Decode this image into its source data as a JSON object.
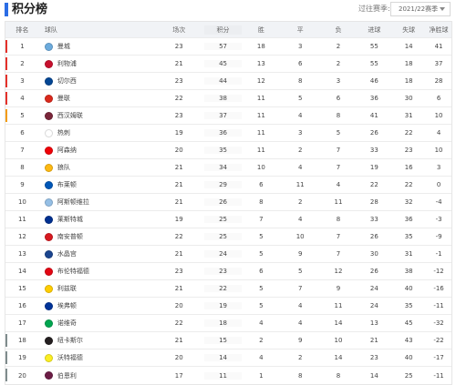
{
  "header": {
    "title": "积分榜",
    "season_label": "过往赛季:",
    "season_value": "2021/22赛季"
  },
  "columns": {
    "rank": "排名",
    "team": "球队",
    "played": "场次",
    "points": "积分",
    "won": "胜",
    "drawn": "平",
    "lost": "负",
    "goals_for": "进球",
    "goals_against": "失球",
    "goal_diff": "净胜球"
  },
  "colors": {
    "accent": "#2b6de5",
    "champions_league": "#e4312b",
    "europa_league": "#f39c12",
    "conference_league": "#27ae60",
    "relegation": "#7f8c8d"
  },
  "rows": [
    {
      "rank": "1",
      "team": "曼城",
      "played": "23",
      "points": "57",
      "won": "18",
      "drawn": "3",
      "lost": "2",
      "gf": "55",
      "ga": "14",
      "gd": "41",
      "zone": "champions_league",
      "crest": "#6cabdd"
    },
    {
      "rank": "2",
      "team": "利物浦",
      "played": "21",
      "points": "45",
      "won": "13",
      "drawn": "6",
      "lost": "2",
      "gf": "55",
      "ga": "18",
      "gd": "37",
      "zone": "champions_league",
      "crest": "#c8102e"
    },
    {
      "rank": "3",
      "team": "切尔西",
      "played": "23",
      "points": "44",
      "won": "12",
      "drawn": "8",
      "lost": "3",
      "gf": "46",
      "ga": "18",
      "gd": "28",
      "zone": "champions_league",
      "crest": "#034694"
    },
    {
      "rank": "4",
      "team": "曼联",
      "played": "22",
      "points": "38",
      "won": "11",
      "drawn": "5",
      "lost": "6",
      "gf": "36",
      "ga": "30",
      "gd": "6",
      "zone": "champions_league",
      "crest": "#da291c"
    },
    {
      "rank": "5",
      "team": "西汉姆联",
      "played": "23",
      "points": "37",
      "won": "11",
      "drawn": "4",
      "lost": "8",
      "gf": "41",
      "ga": "31",
      "gd": "10",
      "zone": "europa_league",
      "crest": "#7a263a"
    },
    {
      "rank": "6",
      "team": "热刺",
      "played": "19",
      "points": "36",
      "won": "11",
      "drawn": "3",
      "lost": "5",
      "gf": "26",
      "ga": "22",
      "gd": "4",
      "zone": "",
      "crest": "#ffffff"
    },
    {
      "rank": "7",
      "team": "阿森纳",
      "played": "20",
      "points": "35",
      "won": "11",
      "drawn": "2",
      "lost": "7",
      "gf": "33",
      "ga": "23",
      "gd": "10",
      "zone": "",
      "crest": "#ef0107"
    },
    {
      "rank": "8",
      "team": "狼队",
      "played": "21",
      "points": "34",
      "won": "10",
      "drawn": "4",
      "lost": "7",
      "gf": "19",
      "ga": "16",
      "gd": "3",
      "zone": "",
      "crest": "#fdb913"
    },
    {
      "rank": "9",
      "team": "布莱顿",
      "played": "21",
      "points": "29",
      "won": "6",
      "drawn": "11",
      "lost": "4",
      "gf": "22",
      "ga": "22",
      "gd": "0",
      "zone": "",
      "crest": "#0057b8"
    },
    {
      "rank": "10",
      "team": "阿斯顿维拉",
      "played": "21",
      "points": "26",
      "won": "8",
      "drawn": "2",
      "lost": "11",
      "gf": "28",
      "ga": "32",
      "gd": "-4",
      "zone": "",
      "crest": "#95bfe5"
    },
    {
      "rank": "11",
      "team": "莱斯特城",
      "played": "19",
      "points": "25",
      "won": "7",
      "drawn": "4",
      "lost": "8",
      "gf": "33",
      "ga": "36",
      "gd": "-3",
      "zone": "",
      "crest": "#003090"
    },
    {
      "rank": "12",
      "team": "南安普顿",
      "played": "22",
      "points": "25",
      "won": "5",
      "drawn": "10",
      "lost": "7",
      "gf": "26",
      "ga": "35",
      "gd": "-9",
      "zone": "",
      "crest": "#d71920"
    },
    {
      "rank": "13",
      "team": "水晶宫",
      "played": "21",
      "points": "24",
      "won": "5",
      "drawn": "9",
      "lost": "7",
      "gf": "30",
      "ga": "31",
      "gd": "-1",
      "zone": "",
      "crest": "#1b458f"
    },
    {
      "rank": "14",
      "team": "布伦特福德",
      "played": "23",
      "points": "23",
      "won": "6",
      "drawn": "5",
      "lost": "12",
      "gf": "26",
      "ga": "38",
      "gd": "-12",
      "zone": "",
      "crest": "#e30613"
    },
    {
      "rank": "15",
      "team": "利兹联",
      "played": "21",
      "points": "22",
      "won": "5",
      "drawn": "7",
      "lost": "9",
      "gf": "24",
      "ga": "40",
      "gd": "-16",
      "zone": "",
      "crest": "#ffcd00"
    },
    {
      "rank": "16",
      "team": "埃弗顿",
      "played": "20",
      "points": "19",
      "won": "5",
      "drawn": "4",
      "lost": "11",
      "gf": "24",
      "ga": "35",
      "gd": "-11",
      "zone": "",
      "crest": "#003399"
    },
    {
      "rank": "17",
      "team": "诺维奇",
      "played": "22",
      "points": "18",
      "won": "4",
      "drawn": "4",
      "lost": "14",
      "gf": "13",
      "ga": "45",
      "gd": "-32",
      "zone": "",
      "crest": "#00a650"
    },
    {
      "rank": "18",
      "team": "纽卡斯尔",
      "played": "21",
      "points": "15",
      "won": "2",
      "drawn": "9",
      "lost": "10",
      "gf": "21",
      "ga": "43",
      "gd": "-22",
      "zone": "relegation",
      "crest": "#241f20"
    },
    {
      "rank": "19",
      "team": "沃特福德",
      "played": "20",
      "points": "14",
      "won": "4",
      "drawn": "2",
      "lost": "14",
      "gf": "23",
      "ga": "40",
      "gd": "-17",
      "zone": "relegation",
      "crest": "#fbee23"
    },
    {
      "rank": "20",
      "team": "伯恩利",
      "played": "17",
      "points": "11",
      "won": "1",
      "drawn": "8",
      "lost": "8",
      "gf": "14",
      "ga": "25",
      "gd": "-11",
      "zone": "relegation",
      "crest": "#6c1d45"
    }
  ]
}
